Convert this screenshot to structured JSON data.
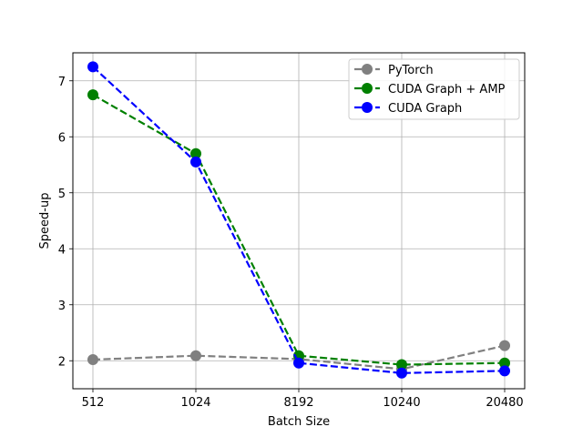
{
  "chart_data": {
    "type": "line",
    "xlabel": "Batch Size",
    "ylabel": "Speed-up",
    "categories": [
      "512",
      "1024",
      "8192",
      "10240",
      "20480"
    ],
    "ylim": [
      1.5,
      7.5
    ],
    "yticks": [
      2,
      3,
      4,
      5,
      6,
      7
    ],
    "grid": true,
    "legend_position": "top-right",
    "series": [
      {
        "name": "PyTorch",
        "color": "#808080",
        "values": [
          2.02,
          2.09,
          2.03,
          1.85,
          2.27
        ]
      },
      {
        "name": "CUDA Graph + AMP",
        "color": "#008000",
        "values": [
          6.75,
          5.7,
          2.09,
          1.93,
          1.96
        ]
      },
      {
        "name": "CUDA Graph",
        "color": "#0000ff",
        "values": [
          7.25,
          5.55,
          1.96,
          1.78,
          1.82
        ]
      }
    ]
  }
}
